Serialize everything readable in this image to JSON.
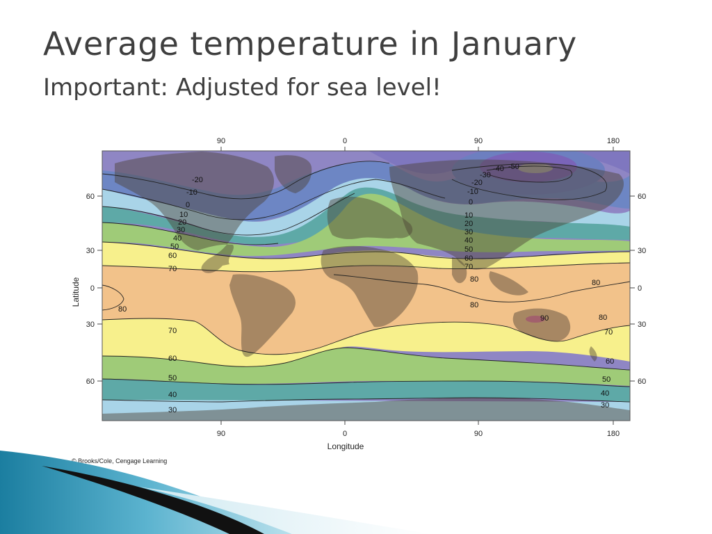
{
  "slide": {
    "title": "Average temperature in January",
    "subtitle": "Important:  Adjusted for sea level!"
  },
  "map": {
    "x_axis_title": "Longitude",
    "y_axis_title": "Latitude",
    "top_ticks": [
      "90",
      "0",
      "90",
      "180"
    ],
    "bottom_ticks": [
      "90",
      "0",
      "90",
      "180"
    ],
    "left_ticks": [
      "60",
      "30",
      "0",
      "30",
      "60"
    ],
    "right_ticks": [
      "60",
      "30",
      "0",
      "30",
      "60"
    ],
    "isotherm_labels_west": [
      "-20",
      "-10",
      "0",
      "10",
      "20",
      "30",
      "40",
      "50",
      "60",
      "70",
      "80",
      "70",
      "60",
      "50",
      "40",
      "30"
    ],
    "isotherm_labels_east": [
      "-50",
      "-40",
      "-30",
      "-20",
      "-10",
      "0",
      "10",
      "20",
      "30",
      "40",
      "50",
      "60",
      "70",
      "80",
      "80",
      "80",
      "90",
      "80",
      "70",
      "60",
      "50",
      "40",
      "30"
    ],
    "colors": {
      "ocean_purple": "#8f86c4",
      "blue_violet": "#6d7fc0",
      "light_blue": "#a9d4e8",
      "teal": "#5ea9a7",
      "green": "#9fcb78",
      "yellow": "#f7f08c",
      "orange": "#f2c28a",
      "land_overlay": "#6b5a46"
    }
  },
  "credit": "© Brooks/Cole, Cengage Learning"
}
